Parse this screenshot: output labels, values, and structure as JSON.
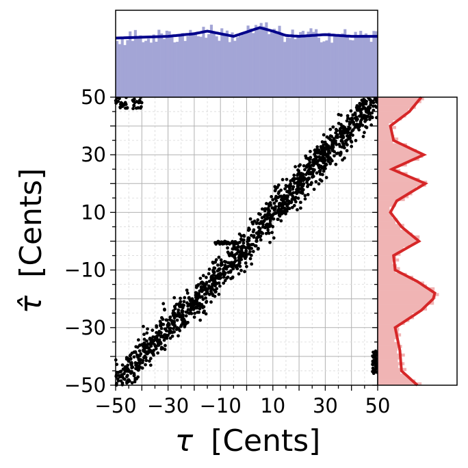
{
  "chart_data": [
    {
      "panel": "main-scatter",
      "type": "scatter",
      "xlabel_symbol": "τ",
      "xlabel_unit": "[Cents]",
      "ylabel_symbol": "τ̂",
      "ylabel_unit": "[Cents]",
      "xlim": [
        -50,
        50
      ],
      "ylim": [
        -50,
        50
      ],
      "x_ticks": [
        -50,
        -30,
        -10,
        10,
        30,
        50
      ],
      "x_tick_labels": [
        "−50",
        "−30",
        "−10",
        "10",
        "30",
        "50"
      ],
      "y_ticks": [
        -50,
        -30,
        -10,
        10,
        30,
        50
      ],
      "y_tick_labels": [
        "−50",
        "−30",
        "−10",
        "10",
        "30",
        "50"
      ],
      "minor_ticks_every": 5,
      "grid": true,
      "marker_color": "#000000",
      "trend": {
        "x": [
          -50,
          -40,
          -30,
          -20,
          -10,
          0,
          10,
          20,
          30,
          40,
          50
        ],
        "y": [
          -50,
          -40,
          -30,
          -22,
          -12,
          -2,
          10,
          20,
          30,
          40,
          50
        ]
      },
      "clusters": [
        {
          "x": [
            -50,
            -40
          ],
          "y": [
            46,
            50
          ]
        },
        {
          "x": [
            -12,
            -3
          ],
          "y": [
            -1,
            0
          ]
        },
        {
          "x": [
            48,
            50
          ],
          "y": [
            -38,
            -46
          ]
        }
      ]
    },
    {
      "panel": "top-marginal",
      "type": "bar",
      "description_axis": "x",
      "range": [
        -50,
        50
      ],
      "bins": 100,
      "color": "#a3a5d6",
      "kde_color": "#00008b",
      "kde": {
        "x": [
          -50,
          -40,
          -30,
          -20,
          -15,
          -10,
          -5,
          0,
          5,
          10,
          15,
          20,
          30,
          40,
          50
        ],
        "y": [
          0.68,
          0.69,
          0.7,
          0.73,
          0.76,
          0.73,
          0.7,
          0.75,
          0.8,
          0.76,
          0.71,
          0.7,
          0.72,
          0.7,
          0.7
        ]
      },
      "mean_height": 0.7
    },
    {
      "panel": "right-marginal",
      "type": "bar",
      "description_axis": "y",
      "range": [
        -50,
        50
      ],
      "bins": 100,
      "color": "#f0b4b4",
      "kde_color": "#d62728",
      "kde": {
        "y": [
          -50,
          -45,
          -38,
          -30,
          -24,
          -20,
          -18,
          -14,
          -10,
          -5,
          0,
          5,
          10,
          14,
          20,
          25,
          30,
          35,
          40,
          45,
          50
        ],
        "x": [
          0.5,
          0.3,
          0.28,
          0.22,
          0.55,
          0.7,
          0.72,
          0.5,
          0.22,
          0.2,
          0.52,
          0.3,
          0.16,
          0.24,
          0.6,
          0.18,
          0.58,
          0.2,
          0.16,
          0.4,
          0.55
        ]
      }
    }
  ]
}
